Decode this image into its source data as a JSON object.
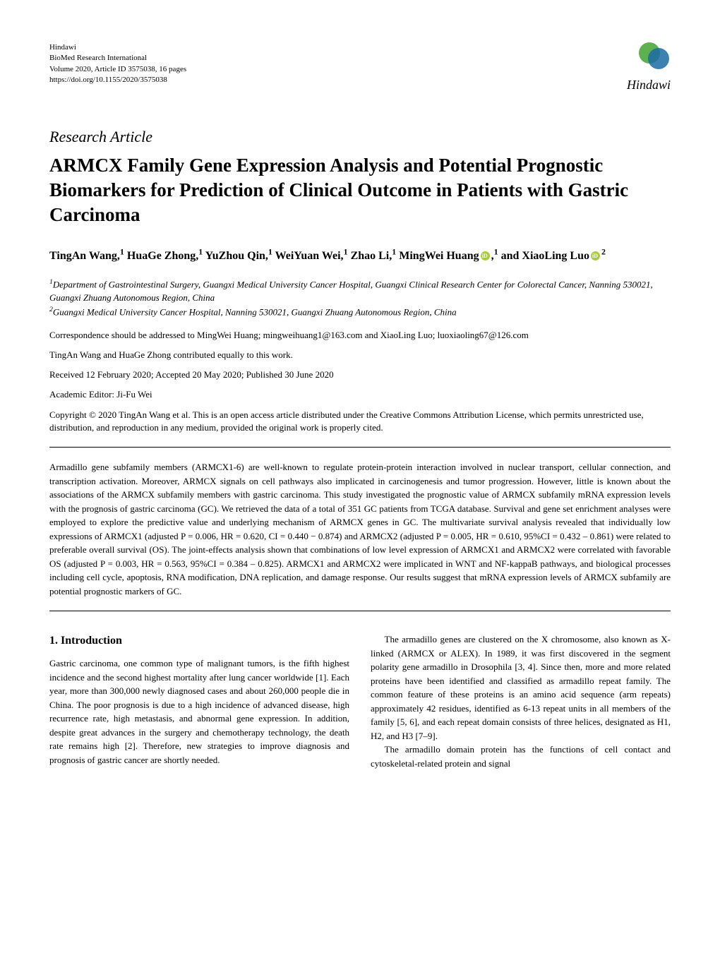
{
  "header": {
    "publisher": "Hindawi",
    "journal": "BioMed Research International",
    "volume_line": "Volume 2020, Article ID 3575038, 16 pages",
    "doi_line": "https://doi.org/10.1155/2020/3575038",
    "logo_text": "Hindawi",
    "logo_colors": {
      "green": "#5fb04e",
      "blue": "#1a6ba5"
    }
  },
  "article": {
    "type": "Research Article",
    "title": "ARMCX Family Gene Expression Analysis and Potential Prognostic Biomarkers for Prediction of Clinical Outcome in Patients with Gastric Carcinoma",
    "authors_html": "TingAn Wang,<sup>1</sup> HuaGe Zhong,<sup>1</sup> YuZhou Qin,<sup>1</sup> WeiYuan Wei,<sup>1</sup> Zhao Li,<sup>1</sup> MingWei Huang",
    "authors_html2": ",<sup>1</sup> and XiaoLing Luo",
    "authors_html3": "<sup>2</sup>",
    "affiliations": [
      "<sup>1</sup>Department of Gastrointestinal Surgery, Guangxi Medical University Cancer Hospital, Guangxi Clinical Research Center for Colorectal Cancer, Nanning 530021, Guangxi Zhuang Autonomous Region, China",
      "<sup>2</sup>Guangxi Medical University Cancer Hospital, Nanning 530021, Guangxi Zhuang Autonomous Region, China"
    ],
    "correspondence": "Correspondence should be addressed to MingWei Huang; mingweihuang1@163.com and XiaoLing Luo; luoxiaoling67@126.com",
    "contribution": "TingAn Wang and HuaGe Zhong contributed equally to this work.",
    "dates": "Received 12 February 2020; Accepted 20 May 2020; Published 30 June 2020",
    "editor": "Academic Editor: Ji-Fu Wei",
    "copyright": "Copyright © 2020 TingAn Wang et al. This is an open access article distributed under the Creative Commons Attribution License, which permits unrestricted use, distribution, and reproduction in any medium, provided the original work is properly cited."
  },
  "abstract": "Armadillo gene subfamily members (ARMCX1-6) are well-known to regulate protein-protein interaction involved in nuclear transport, cellular connection, and transcription activation. Moreover, ARMCX signals on cell pathways also implicated in carcinogenesis and tumor progression. However, little is known about the associations of the ARMCX subfamily members with gastric carcinoma. This study investigated the prognostic value of ARMCX subfamily mRNA expression levels with the prognosis of gastric carcinoma (GC). We retrieved the data of a total of 351 GC patients from TCGA database. Survival and gene set enrichment analyses were employed to explore the predictive value and underlying mechanism of ARMCX genes in GC. The multivariate survival analysis revealed that individually low expressions of ARMCX1 (adjusted P = 0.006, HR = 0.620, CI = 0.440 − 0.874) and ARMCX2 (adjusted P = 0.005, HR = 0.610, 95%CI = 0.432 – 0.861) were related to preferable overall survival (OS). The joint-effects analysis shown that combinations of low level expression of ARMCX1 and ARMCX2 were correlated with favorable OS (adjusted P = 0.003, HR = 0.563, 95%CI = 0.384 – 0.825). ARMCX1 and ARMCX2 were implicated in WNT and NF-kappaB pathways, and biological processes including cell cycle, apoptosis, RNA modification, DNA replication, and damage response. Our results suggest that mRNA expression levels of ARMCX subfamily are potential prognostic markers of GC.",
  "sections": {
    "intro_heading": "1. Introduction",
    "intro_para1": "Gastric carcinoma, one common type of malignant tumors, is the fifth highest incidence and the second highest mortality after lung cancer worldwide [1]. Each year, more than 300,000 newly diagnosed cases and about 260,000 people die in China. The poor prognosis is due to a high incidence of advanced disease, high recurrence rate, high metastasis, and abnormal gene expression. In addition, despite great advances in the surgery and chemotherapy technology, the death rate remains high [2]. Therefore, new strategies to improve diagnosis and prognosis of gastric cancer are shortly needed.",
    "intro_para2": "The armadillo genes are clustered on the X chromosome, also known as X-linked (ARMCX or ALEX). In 1989, it was first discovered in the segment polarity gene armadillo in Drosophila [3, 4]. Since then, more and more related proteins have been identified and classified as armadillo repeat family. The common feature of these proteins is an amino acid sequence (arm repeats) approximately 42 residues, identified as 6-13 repeat units in all members of the family [5, 6], and each repeat domain consists of three helices, designated as H1, H2, and H3 [7–9].",
    "intro_para3": "The armadillo domain protein has the functions of cell contact and cytoskeletal-related protein and signal"
  },
  "styling": {
    "body_width": 1020,
    "body_height": 1360,
    "background_color": "#ffffff",
    "text_color": "#000000",
    "title_fontsize": 27,
    "type_fontsize": 22,
    "authors_fontsize": 16,
    "body_fontsize": 13,
    "pub_info_fontsize": 11
  }
}
